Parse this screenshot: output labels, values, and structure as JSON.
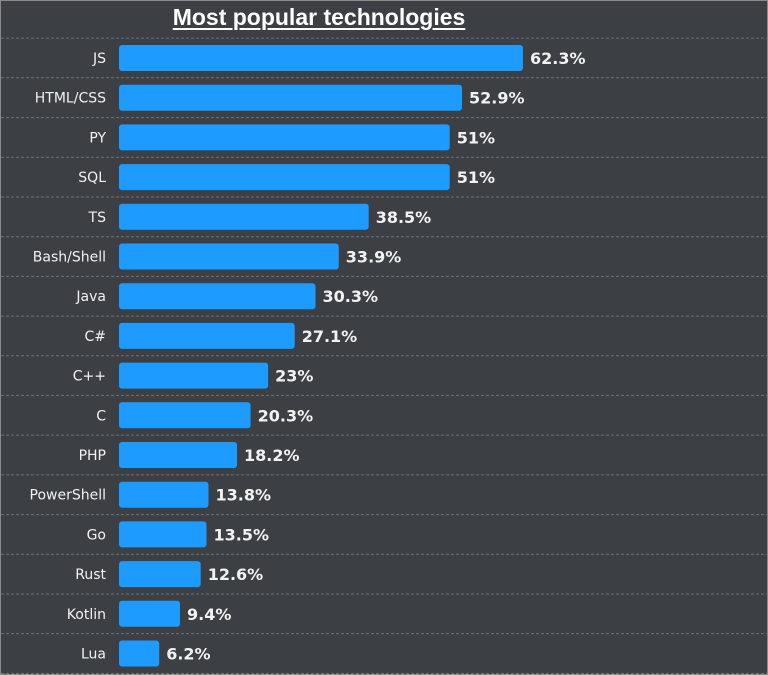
{
  "chart_data": {
    "type": "bar",
    "orientation": "horizontal",
    "title": "Most popular technologies",
    "categories": [
      "JS",
      "HTML/CSS",
      "PY",
      "SQL",
      "TS",
      "Bash/Shell",
      "Java",
      "C#",
      "C++",
      "C",
      "PHP",
      "PowerShell",
      "Go",
      "Rust",
      "Kotlin",
      "Lua"
    ],
    "values": [
      62.3,
      52.9,
      51,
      51,
      38.5,
      33.9,
      30.3,
      27.1,
      23,
      20.3,
      18.2,
      13.8,
      13.5,
      12.6,
      9.4,
      6.2
    ],
    "value_labels": [
      "62.3%",
      "52.9%",
      "51%",
      "51%",
      "38.5%",
      "33.9%",
      "30.3%",
      "27.1%",
      "23%",
      "20.3%",
      "18.2%",
      "13.8%",
      "13.5%",
      "12.6%",
      "9.4%",
      "6.2%"
    ],
    "xlim": [
      0,
      62.3
    ],
    "grid": "horizontal dashed separators",
    "legend": "none",
    "colors": {
      "bar": "#1e9bff",
      "background": "#3c3f43",
      "text": "#f2f2f2",
      "gridline": "#6e7276"
    }
  }
}
